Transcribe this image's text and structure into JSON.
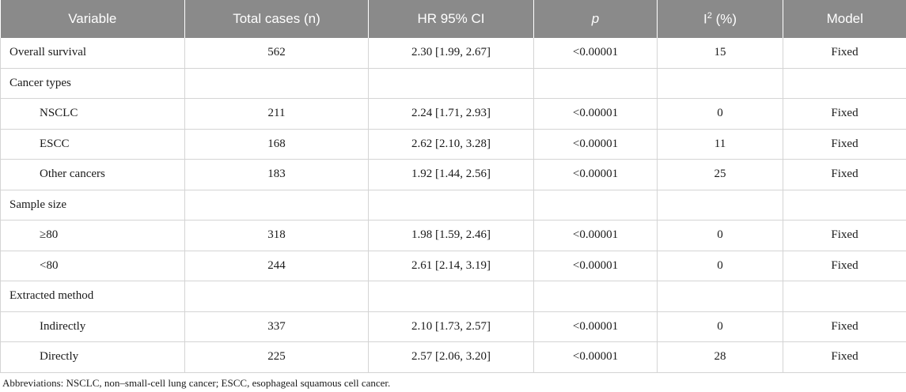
{
  "table": {
    "headers": {
      "variable": "Variable",
      "total_cases": "Total cases (n)",
      "hr_ci": "HR 95% CI",
      "p": "p",
      "i2_base": "I",
      "i2_sup": "2",
      "i2_suffix": " (%)",
      "model": "Model"
    },
    "rows": [
      {
        "variable": "Overall survival",
        "total_cases": "562",
        "hr_ci": "2.30 [1.99, 2.67]",
        "p": "<0.00001",
        "i2": "15",
        "model": "Fixed"
      },
      {
        "variable": "Cancer types",
        "total_cases": "",
        "hr_ci": "",
        "p": "",
        "i2": "",
        "model": ""
      },
      {
        "variable": "NSCLC",
        "total_cases": "211",
        "hr_ci": "2.24 [1.71, 2.93]",
        "p": "<0.00001",
        "i2": "0",
        "model": "Fixed"
      },
      {
        "variable": "ESCC",
        "total_cases": "168",
        "hr_ci": "2.62 [2.10, 3.28]",
        "p": "<0.00001",
        "i2": "11",
        "model": "Fixed"
      },
      {
        "variable": "Other cancers",
        "total_cases": "183",
        "hr_ci": "1.92 [1.44, 2.56]",
        "p": "<0.00001",
        "i2": "25",
        "model": "Fixed"
      },
      {
        "variable": "Sample size",
        "total_cases": "",
        "hr_ci": "",
        "p": "",
        "i2": "",
        "model": ""
      },
      {
        "variable": "≥80",
        "total_cases": "318",
        "hr_ci": "1.98 [1.59, 2.46]",
        "p": "<0.00001",
        "i2": "0",
        "model": "Fixed"
      },
      {
        "variable": "<80",
        "total_cases": "244",
        "hr_ci": "2.61 [2.14, 3.19]",
        "p": "<0.00001",
        "i2": "0",
        "model": "Fixed"
      },
      {
        "variable": "Extracted method",
        "total_cases": "",
        "hr_ci": "",
        "p": "",
        "i2": "",
        "model": ""
      },
      {
        "variable": "Indirectly",
        "total_cases": "337",
        "hr_ci": "2.10 [1.73, 2.57]",
        "p": "<0.00001",
        "i2": "0",
        "model": "Fixed"
      },
      {
        "variable": "Directly",
        "total_cases": "225",
        "hr_ci": "2.57 [2.06, 3.20]",
        "p": "<0.00001",
        "i2": "28",
        "model": "Fixed"
      }
    ]
  },
  "footnote": "Abbreviations: NSCLC, non–small-cell lung cancer; ESCC, esophageal squamous cell cancer."
}
